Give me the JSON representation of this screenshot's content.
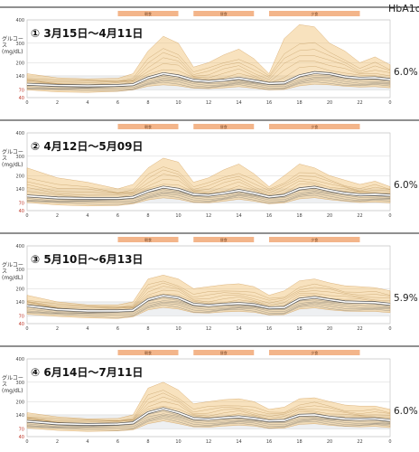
{
  "header": {
    "hba1c_label": "HbA1c"
  },
  "chart_data": [
    {
      "type": "area",
      "title": "① 3月15日～4月11日",
      "ylabel": "グルコース (mg/dL)",
      "hba1c": "6.0%",
      "x_ticks": [
        "0",
        "2",
        "4",
        "6",
        "8",
        "10",
        "12",
        "14",
        "16",
        "18",
        "20",
        "22",
        "0"
      ],
      "y_ticks": [
        "400",
        "300",
        "200",
        "140",
        "70",
        "40"
      ],
      "meal_bands": [
        {
          "label": "朝食",
          "start": 6,
          "end": 10
        },
        {
          "label": "昼食",
          "start": 11,
          "end": 15
        },
        {
          "label": "夕食",
          "start": 16,
          "end": 22
        }
      ],
      "target_range": [
        70,
        140
      ],
      "median": [
        [
          0,
          98
        ],
        [
          2,
          92
        ],
        [
          4,
          90
        ],
        [
          6,
          92
        ],
        [
          7,
          96
        ],
        [
          8,
          130
        ],
        [
          9,
          150
        ],
        [
          10,
          140
        ],
        [
          11,
          118
        ],
        [
          12,
          112
        ],
        [
          13,
          118
        ],
        [
          14,
          128
        ],
        [
          15,
          115
        ],
        [
          16,
          102
        ],
        [
          17,
          105
        ],
        [
          18,
          140
        ],
        [
          19,
          155
        ],
        [
          20,
          150
        ],
        [
          21,
          135
        ],
        [
          22,
          128
        ],
        [
          23,
          130
        ],
        [
          24,
          122
        ]
      ],
      "upper_band": [
        [
          0,
          150
        ],
        [
          2,
          130
        ],
        [
          4,
          125
        ],
        [
          6,
          128
        ],
        [
          7,
          150
        ],
        [
          8,
          260
        ],
        [
          9,
          330
        ],
        [
          10,
          300
        ],
        [
          11,
          180
        ],
        [
          12,
          200
        ],
        [
          13,
          240
        ],
        [
          14,
          270
        ],
        [
          15,
          220
        ],
        [
          16,
          150
        ],
        [
          17,
          320
        ],
        [
          18,
          380
        ],
        [
          19,
          370
        ],
        [
          20,
          300
        ],
        [
          21,
          260
        ],
        [
          22,
          200
        ],
        [
          23,
          230
        ],
        [
          24,
          190
        ]
      ],
      "lower_band": [
        [
          0,
          70
        ],
        [
          2,
          62
        ],
        [
          4,
          60
        ],
        [
          6,
          64
        ],
        [
          7,
          70
        ],
        [
          8,
          88
        ],
        [
          9,
          95
        ],
        [
          10,
          90
        ],
        [
          11,
          78
        ],
        [
          12,
          76
        ],
        [
          13,
          80
        ],
        [
          14,
          86
        ],
        [
          15,
          78
        ],
        [
          16,
          70
        ],
        [
          17,
          72
        ],
        [
          18,
          90
        ],
        [
          19,
          98
        ],
        [
          20,
          95
        ],
        [
          21,
          88
        ],
        [
          22,
          84
        ],
        [
          23,
          86
        ],
        [
          24,
          80
        ]
      ]
    },
    {
      "type": "area",
      "title": "② 4月12日～5月09日",
      "ylabel": "グルコース (mg/dL)",
      "hba1c": "6.0%",
      "x_ticks": [
        "0",
        "2",
        "4",
        "6",
        "8",
        "10",
        "12",
        "14",
        "16",
        "18",
        "20",
        "22",
        "0"
      ],
      "y_ticks": [
        "400",
        "300",
        "200",
        "140",
        "70",
        "40"
      ],
      "meal_bands": [
        {
          "label": "朝食",
          "start": 6,
          "end": 10
        },
        {
          "label": "昼食",
          "start": 11,
          "end": 15
        },
        {
          "label": "夕食",
          "start": 16,
          "end": 22
        }
      ],
      "target_range": [
        70,
        140
      ],
      "median": [
        [
          0,
          105
        ],
        [
          2,
          95
        ],
        [
          4,
          92
        ],
        [
          6,
          92
        ],
        [
          7,
          98
        ],
        [
          8,
          128
        ],
        [
          9,
          148
        ],
        [
          10,
          138
        ],
        [
          11,
          112
        ],
        [
          12,
          108
        ],
        [
          13,
          118
        ],
        [
          14,
          132
        ],
        [
          15,
          118
        ],
        [
          16,
          100
        ],
        [
          17,
          108
        ],
        [
          18,
          140
        ],
        [
          19,
          148
        ],
        [
          20,
          132
        ],
        [
          21,
          118
        ],
        [
          22,
          110
        ],
        [
          23,
          112
        ],
        [
          24,
          108
        ]
      ],
      "upper_band": [
        [
          0,
          240
        ],
        [
          2,
          190
        ],
        [
          4,
          170
        ],
        [
          6,
          140
        ],
        [
          7,
          160
        ],
        [
          8,
          240
        ],
        [
          9,
          290
        ],
        [
          10,
          270
        ],
        [
          11,
          170
        ],
        [
          12,
          190
        ],
        [
          13,
          230
        ],
        [
          14,
          260
        ],
        [
          15,
          210
        ],
        [
          16,
          150
        ],
        [
          17,
          200
        ],
        [
          18,
          260
        ],
        [
          19,
          240
        ],
        [
          20,
          200
        ],
        [
          21,
          180
        ],
        [
          22,
          160
        ],
        [
          23,
          175
        ],
        [
          24,
          150
        ]
      ],
      "lower_band": [
        [
          0,
          72
        ],
        [
          2,
          62
        ],
        [
          4,
          58
        ],
        [
          6,
          60
        ],
        [
          7,
          66
        ],
        [
          8,
          85
        ],
        [
          9,
          95
        ],
        [
          10,
          88
        ],
        [
          11,
          72
        ],
        [
          12,
          70
        ],
        [
          13,
          78
        ],
        [
          14,
          88
        ],
        [
          15,
          78
        ],
        [
          16,
          66
        ],
        [
          17,
          70
        ],
        [
          18,
          90
        ],
        [
          19,
          96
        ],
        [
          20,
          86
        ],
        [
          21,
          78
        ],
        [
          22,
          72
        ],
        [
          23,
          74
        ],
        [
          24,
          70
        ]
      ]
    },
    {
      "type": "area",
      "title": "③ 5月10日～6月13日",
      "ylabel": "グルコース (mg/dL)",
      "hba1c": "5.9%",
      "x_ticks": [
        "0",
        "2",
        "4",
        "6",
        "8",
        "10",
        "12",
        "14",
        "16",
        "18",
        "20",
        "22",
        "0"
      ],
      "y_ticks": [
        "400",
        "300",
        "200",
        "140",
        "70",
        "40"
      ],
      "meal_bands": [
        {
          "label": "朝食",
          "start": 6,
          "end": 10
        },
        {
          "label": "昼食",
          "start": 11,
          "end": 15
        },
        {
          "label": "夕食",
          "start": 16,
          "end": 22
        }
      ],
      "target_range": [
        70,
        140
      ],
      "median": [
        [
          0,
          120
        ],
        [
          2,
          102
        ],
        [
          4,
          95
        ],
        [
          6,
          95
        ],
        [
          7,
          98
        ],
        [
          8,
          150
        ],
        [
          9,
          168
        ],
        [
          10,
          158
        ],
        [
          11,
          128
        ],
        [
          12,
          122
        ],
        [
          13,
          128
        ],
        [
          14,
          132
        ],
        [
          15,
          126
        ],
        [
          16,
          110
        ],
        [
          17,
          112
        ],
        [
          18,
          152
        ],
        [
          19,
          160
        ],
        [
          20,
          150
        ],
        [
          21,
          140
        ],
        [
          22,
          138
        ],
        [
          23,
          136
        ],
        [
          24,
          128
        ]
      ],
      "upper_band": [
        [
          0,
          170
        ],
        [
          2,
          140
        ],
        [
          4,
          125
        ],
        [
          6,
          125
        ],
        [
          7,
          140
        ],
        [
          8,
          250
        ],
        [
          9,
          270
        ],
        [
          10,
          250
        ],
        [
          11,
          200
        ],
        [
          12,
          210
        ],
        [
          13,
          220
        ],
        [
          14,
          225
        ],
        [
          15,
          210
        ],
        [
          16,
          170
        ],
        [
          17,
          190
        ],
        [
          18,
          240
        ],
        [
          19,
          250
        ],
        [
          20,
          230
        ],
        [
          21,
          215
        ],
        [
          22,
          210
        ],
        [
          23,
          205
        ],
        [
          24,
          190
        ]
      ],
      "lower_band": [
        [
          0,
          78
        ],
        [
          2,
          68
        ],
        [
          4,
          62
        ],
        [
          6,
          60
        ],
        [
          7,
          66
        ],
        [
          8,
          100
        ],
        [
          9,
          112
        ],
        [
          10,
          104
        ],
        [
          11,
          86
        ],
        [
          12,
          84
        ],
        [
          13,
          90
        ],
        [
          14,
          92
        ],
        [
          15,
          88
        ],
        [
          16,
          74
        ],
        [
          17,
          76
        ],
        [
          18,
          104
        ],
        [
          19,
          110
        ],
        [
          20,
          100
        ],
        [
          21,
          94
        ],
        [
          22,
          92
        ],
        [
          23,
          92
        ],
        [
          24,
          86
        ]
      ]
    },
    {
      "type": "area",
      "title": "④ 6月14日～7月11日",
      "ylabel": "グルコース (mg/dL)",
      "hba1c": "6.0%",
      "x_ticks": [
        "0",
        "2",
        "4",
        "6",
        "8",
        "10",
        "12",
        "14",
        "16",
        "18",
        "20",
        "22",
        "0"
      ],
      "y_ticks": [
        "400",
        "300",
        "200",
        "140",
        "70",
        "40"
      ],
      "meal_bands": [
        {
          "label": "朝食",
          "start": 6,
          "end": 10
        },
        {
          "label": "昼食",
          "start": 11,
          "end": 15
        },
        {
          "label": "夕食",
          "start": 16,
          "end": 22
        }
      ],
      "target_range": [
        70,
        140
      ],
      "median": [
        [
          0,
          108
        ],
        [
          2,
          96
        ],
        [
          4,
          92
        ],
        [
          6,
          94
        ],
        [
          7,
          100
        ],
        [
          8,
          150
        ],
        [
          9,
          168
        ],
        [
          10,
          150
        ],
        [
          11,
          122
        ],
        [
          12,
          118
        ],
        [
          13,
          125
        ],
        [
          14,
          130
        ],
        [
          15,
          122
        ],
        [
          16,
          110
        ],
        [
          17,
          112
        ],
        [
          18,
          138
        ],
        [
          19,
          140
        ],
        [
          20,
          128
        ],
        [
          21,
          120
        ],
        [
          22,
          118
        ],
        [
          23,
          120
        ],
        [
          24,
          112
        ]
      ],
      "upper_band": [
        [
          0,
          150
        ],
        [
          2,
          130
        ],
        [
          4,
          120
        ],
        [
          6,
          122
        ],
        [
          7,
          140
        ],
        [
          8,
          270
        ],
        [
          9,
          300
        ],
        [
          10,
          260
        ],
        [
          11,
          190
        ],
        [
          12,
          200
        ],
        [
          13,
          210
        ],
        [
          14,
          215
        ],
        [
          15,
          200
        ],
        [
          16,
          165
        ],
        [
          17,
          175
        ],
        [
          18,
          215
        ],
        [
          19,
          220
        ],
        [
          20,
          200
        ],
        [
          21,
          185
        ],
        [
          22,
          180
        ],
        [
          23,
          180
        ],
        [
          24,
          165
        ]
      ],
      "lower_band": [
        [
          0,
          74
        ],
        [
          2,
          64
        ],
        [
          4,
          60
        ],
        [
          6,
          62
        ],
        [
          7,
          66
        ],
        [
          8,
          96
        ],
        [
          9,
          110
        ],
        [
          10,
          96
        ],
        [
          11,
          80
        ],
        [
          12,
          78
        ],
        [
          13,
          84
        ],
        [
          14,
          88
        ],
        [
          15,
          84
        ],
        [
          16,
          72
        ],
        [
          17,
          74
        ],
        [
          18,
          92
        ],
        [
          19,
          96
        ],
        [
          20,
          88
        ],
        [
          21,
          82
        ],
        [
          22,
          80
        ],
        [
          23,
          82
        ],
        [
          24,
          76
        ]
      ]
    }
  ]
}
